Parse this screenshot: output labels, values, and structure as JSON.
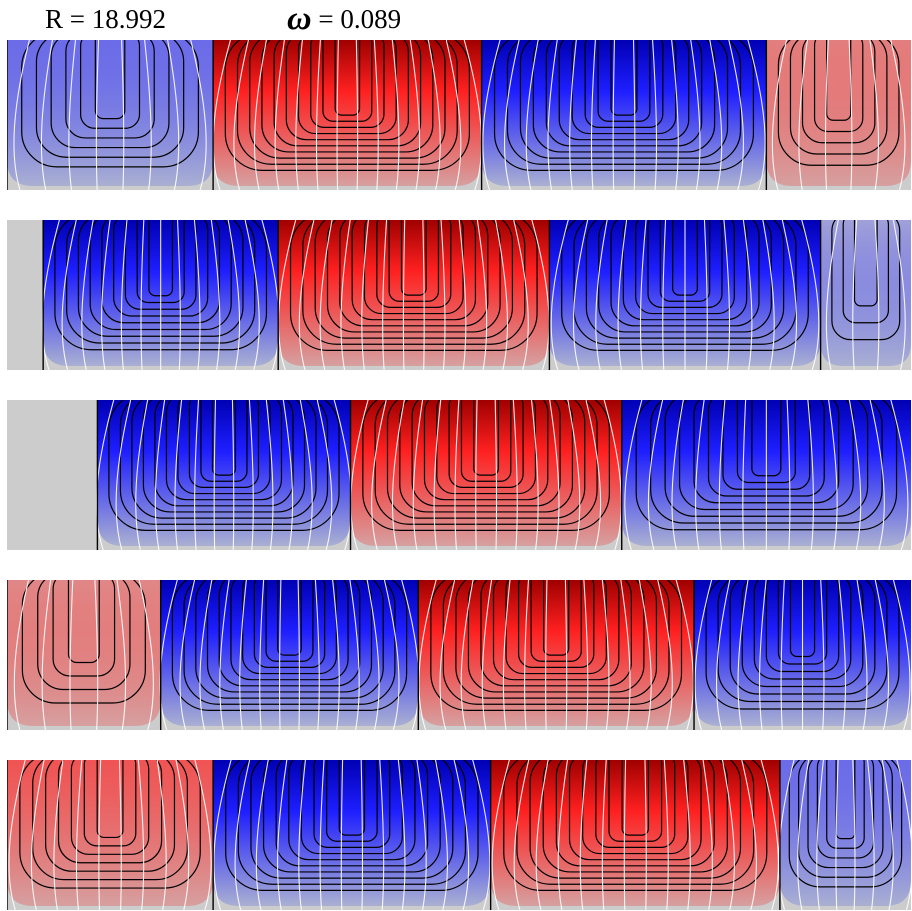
{
  "header": {
    "r_label": "R = 18.992",
    "omega_symbol": "ω",
    "omega_value": "= 0.089"
  },
  "colors": {
    "positive_strong": "#a00000",
    "positive_mid": "#ff2020",
    "negative_strong": "#0000b4",
    "negative_mid": "#1e1eff",
    "neutral_zone": "#cccccc",
    "weak_negative": "#aab0d2",
    "weak_positive": "#d6a0a0",
    "black_contours": "#000000",
    "white_contours": "#ffffff"
  },
  "panels": [
    {
      "id": "panel-1",
      "cells": [
        {
          "from": 0.0,
          "to": 0.228,
          "sign": -1,
          "peak": 0.55
        },
        {
          "from": 0.228,
          "to": 0.525,
          "sign": 1,
          "peak": 1.0
        },
        {
          "from": 0.525,
          "to": 0.84,
          "sign": -1,
          "peak": 1.0
        },
        {
          "from": 0.84,
          "to": 1.0,
          "sign": 1,
          "peak": 0.45
        }
      ]
    },
    {
      "id": "panel-2",
      "cells": [
        {
          "from": 0.0,
          "to": 0.04,
          "sign": 0,
          "peak": 0.0
        },
        {
          "from": 0.04,
          "to": 0.3,
          "sign": -1,
          "peak": 0.9
        },
        {
          "from": 0.3,
          "to": 0.6,
          "sign": 1,
          "peak": 1.0
        },
        {
          "from": 0.6,
          "to": 0.9,
          "sign": -1,
          "peak": 0.95
        },
        {
          "from": 0.9,
          "to": 1.0,
          "sign": -1,
          "peak": 0.25
        }
      ]
    },
    {
      "id": "panel-3",
      "cells": [
        {
          "from": 0.0,
          "to": 0.1,
          "sign": 0,
          "peak": 0.0
        },
        {
          "from": 0.1,
          "to": 0.38,
          "sign": -1,
          "peak": 1.0
        },
        {
          "from": 0.38,
          "to": 0.68,
          "sign": 1,
          "peak": 1.0
        },
        {
          "from": 0.68,
          "to": 1.0,
          "sign": -1,
          "peak": 0.9
        }
      ]
    },
    {
      "id": "panel-4",
      "cells": [
        {
          "from": 0.0,
          "to": 0.17,
          "sign": 1,
          "peak": 0.4
        },
        {
          "from": 0.17,
          "to": 0.455,
          "sign": -1,
          "peak": 1.0
        },
        {
          "from": 0.455,
          "to": 0.76,
          "sign": 1,
          "peak": 1.0
        },
        {
          "from": 0.76,
          "to": 1.0,
          "sign": -1,
          "peak": 0.75
        }
      ]
    },
    {
      "id": "panel-5",
      "cells": [
        {
          "from": 0.0,
          "to": 0.228,
          "sign": 1,
          "peak": 0.7
        },
        {
          "from": 0.228,
          "to": 0.535,
          "sign": -1,
          "peak": 1.0
        },
        {
          "from": 0.535,
          "to": 0.855,
          "sign": 1,
          "peak": 1.0
        },
        {
          "from": 0.855,
          "to": 1.0,
          "sign": -1,
          "peak": 0.55
        }
      ]
    }
  ]
}
